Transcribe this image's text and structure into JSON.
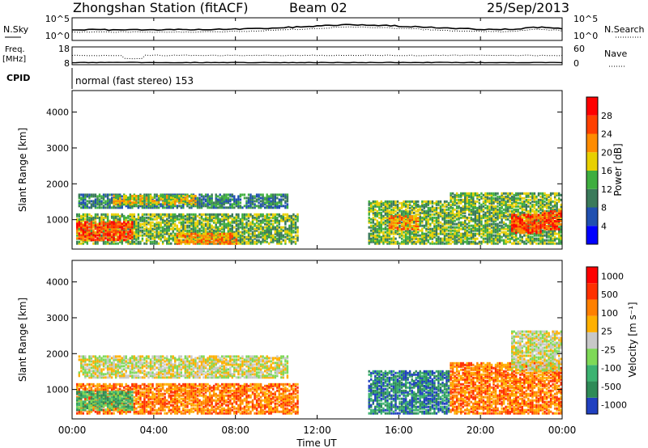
{
  "header": {
    "station": "Zhongshan Station (fitACF)",
    "beam": "Beam 02",
    "date": "25/Sep/2013"
  },
  "noise_panel": {
    "left_label": "N.Sky",
    "right_label": "N.Search",
    "left_ticks": [
      "10^5",
      "10^0"
    ],
    "right_ticks": [
      "10^5",
      "10^0"
    ]
  },
  "freq_panel": {
    "left_label_top": "Freq.",
    "left_label_bottom": "[MHz]",
    "right_label": "Nave",
    "left_ticks": [
      "18",
      "8"
    ],
    "right_ticks": [
      "60",
      "0"
    ]
  },
  "cpid_panel": {
    "label": "CPID",
    "text": "normal (fast stereo) 153"
  },
  "x_axis": {
    "title": "Time UT",
    "ticks": [
      "00:00",
      "04:00",
      "08:00",
      "12:00",
      "16:00",
      "20:00",
      "00:00"
    ]
  },
  "chart_data": [
    {
      "type": "heatmap",
      "name": "Power",
      "ylabel": "Slant Range [km]",
      "yticks": [
        1000,
        2000,
        3000,
        4000
      ],
      "ylim": [
        180,
        4600
      ],
      "xlim_hours": [
        0,
        24
      ],
      "colorbar_title": "Power [dB]",
      "colorbar_ticks": [
        "4",
        "8",
        "12",
        "16",
        "20",
        "24",
        "28"
      ],
      "colors": [
        "#0000ff",
        "#2050b0",
        "#3a7a5a",
        "#3fae3f",
        "#e8d000",
        "#ff8c00",
        "#ff4000",
        "#ff0000"
      ],
      "regions": [
        {
          "t0": 0.2,
          "t1": 11.0,
          "r0": 300,
          "r1": 1150,
          "level": 3
        },
        {
          "t0": 0.2,
          "t1": 3.0,
          "r0": 400,
          "r1": 900,
          "level": 6
        },
        {
          "t0": 0.3,
          "t1": 10.5,
          "r0": 1300,
          "r1": 1700,
          "level": 2
        },
        {
          "t0": 2.0,
          "t1": 6.0,
          "r0": 1400,
          "r1": 1650,
          "level": 4
        },
        {
          "t0": 5.0,
          "t1": 8.0,
          "r0": 300,
          "r1": 600,
          "level": 5
        },
        {
          "t0": 14.5,
          "t1": 18.5,
          "r0": 300,
          "r1": 1500,
          "level": 3
        },
        {
          "t0": 15.5,
          "t1": 17.0,
          "r0": 700,
          "r1": 1100,
          "level": 5
        },
        {
          "t0": 18.5,
          "t1": 24.0,
          "r0": 300,
          "r1": 1700,
          "level": 3
        },
        {
          "t0": 21.5,
          "t1": 23.0,
          "r0": 600,
          "r1": 1100,
          "level": 6
        },
        {
          "t0": 23.0,
          "t1": 24.0,
          "r0": 700,
          "r1": 1200,
          "level": 6
        }
      ]
    },
    {
      "type": "heatmap",
      "name": "Velocity",
      "ylabel": "Slant Range [km]",
      "yticks": [
        1000,
        2000,
        3000,
        4000
      ],
      "ylim": [
        180,
        4600
      ],
      "xlim_hours": [
        0,
        24
      ],
      "colorbar_title": "Velocity [m s⁻¹]",
      "colorbar_ticks": [
        "1000",
        "500",
        "100",
        "25",
        "-25",
        "-100",
        "-500",
        "-1000"
      ],
      "colors": [
        "#2040c0",
        "#2e8b57",
        "#3cb371",
        "#7ed957",
        "#c8c8c8",
        "#ffb000",
        "#ff8000",
        "#ff3000",
        "#ff0000"
      ],
      "regions": [
        {
          "t0": 0.2,
          "t1": 11.0,
          "r0": 300,
          "r1": 1150,
          "level": 6
        },
        {
          "t0": 0.3,
          "t1": 10.5,
          "r0": 1300,
          "r1": 1900,
          "level": 4
        },
        {
          "t0": 0.2,
          "t1": 3.0,
          "r0": 400,
          "r1": 900,
          "level": 2
        },
        {
          "t0": 14.5,
          "t1": 18.5,
          "r0": 300,
          "r1": 1500,
          "level": 1
        },
        {
          "t0": 18.5,
          "t1": 24.0,
          "r0": 300,
          "r1": 1700,
          "level": 6
        },
        {
          "t0": 21.5,
          "t1": 24.0,
          "r0": 1500,
          "r1": 2600,
          "level": 4
        }
      ]
    }
  ]
}
